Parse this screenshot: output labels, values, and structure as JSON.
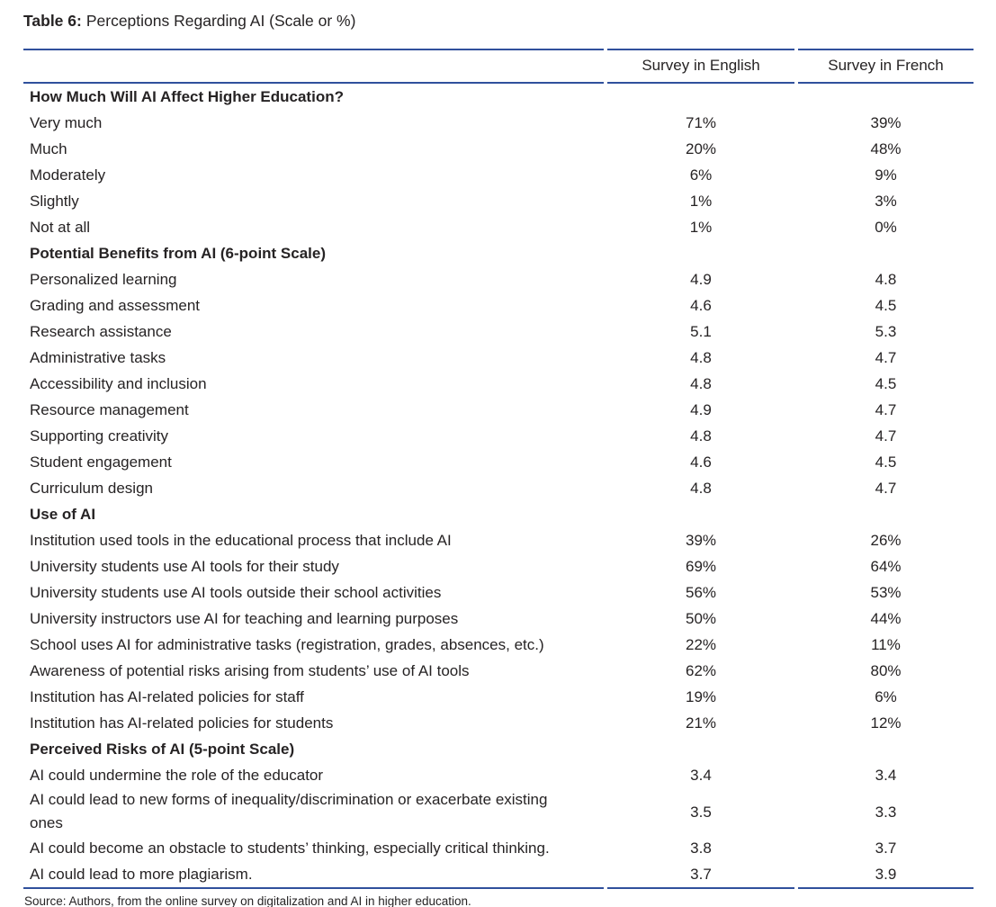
{
  "title": {
    "label": "Table 6:",
    "text": "Perceptions Regarding AI (Scale or %)"
  },
  "table": {
    "columns": [
      "",
      "Survey in English",
      "Survey in French"
    ],
    "rows": [
      {
        "type": "section",
        "label": "How Much Will AI Affect Higher Education?"
      },
      {
        "type": "data",
        "label": "Very much",
        "english": "71%",
        "french": "39%"
      },
      {
        "type": "data",
        "label": "Much",
        "english": "20%",
        "french": "48%"
      },
      {
        "type": "data",
        "label": "Moderately",
        "english": "6%",
        "french": "9%"
      },
      {
        "type": "data",
        "label": "Slightly",
        "english": "1%",
        "french": "3%"
      },
      {
        "type": "data",
        "label": "Not at all",
        "english": "1%",
        "french": "0%"
      },
      {
        "type": "section",
        "label": "Potential Benefits from AI (6-point Scale)"
      },
      {
        "type": "data",
        "label": "Personalized learning",
        "english": "4.9",
        "french": "4.8"
      },
      {
        "type": "data",
        "label": "Grading and assessment",
        "english": "4.6",
        "french": "4.5"
      },
      {
        "type": "data",
        "label": "Research assistance",
        "english": "5.1",
        "french": "5.3"
      },
      {
        "type": "data",
        "label": "Administrative tasks",
        "english": "4.8",
        "french": "4.7"
      },
      {
        "type": "data",
        "label": "Accessibility and inclusion",
        "english": "4.8",
        "french": "4.5"
      },
      {
        "type": "data",
        "label": "Resource management",
        "english": "4.9",
        "french": "4.7"
      },
      {
        "type": "data",
        "label": "Supporting creativity",
        "english": "4.8",
        "french": "4.7"
      },
      {
        "type": "data",
        "label": "Student engagement",
        "english": "4.6",
        "french": "4.5"
      },
      {
        "type": "data",
        "label": "Curriculum design",
        "english": "4.8",
        "french": "4.7"
      },
      {
        "type": "section",
        "label": "Use of AI"
      },
      {
        "type": "data",
        "label": "Institution used tools in the educational process that include AI",
        "english": "39%",
        "french": "26%"
      },
      {
        "type": "data",
        "label": "University students use AI tools for their study",
        "english": "69%",
        "french": "64%"
      },
      {
        "type": "data",
        "label": "University students use AI tools outside their school activities",
        "english": "56%",
        "french": "53%"
      },
      {
        "type": "data",
        "label": "University instructors use AI for teaching and learning purposes",
        "english": "50%",
        "french": "44%"
      },
      {
        "type": "data",
        "label": "School uses AI for administrative tasks (registration, grades, absences, etc.)",
        "english": "22%",
        "french": "11%"
      },
      {
        "type": "data",
        "label": "Awareness of potential risks arising from students’ use of AI tools",
        "english": "62%",
        "french": "80%"
      },
      {
        "type": "data",
        "label": "Institution has AI-related policies for staff",
        "english": "19%",
        "french": "6%"
      },
      {
        "type": "data",
        "label": "Institution has AI-related policies for students",
        "english": "21%",
        "french": "12%"
      },
      {
        "type": "section",
        "label": "Perceived Risks of AI (5-point Scale)"
      },
      {
        "type": "data",
        "label": "AI could undermine the role of the educator",
        "english": "3.4",
        "french": "3.4"
      },
      {
        "type": "data",
        "label": "AI could lead to new forms of inequality/discrimination or exacerbate existing ones",
        "english": "3.5",
        "french": "3.3"
      },
      {
        "type": "data",
        "label": "AI could become an obstacle to students’ thinking, especially critical thinking.",
        "english": "3.8",
        "french": "3.7"
      },
      {
        "type": "data",
        "label": "AI could lead to more plagiarism.",
        "english": "3.7",
        "french": "3.9"
      }
    ]
  },
  "source": "Source: Authors, from the online survey on digitalization and AI in higher education.",
  "colors": {
    "rule_blue": "#30509c",
    "text": "#262324"
  }
}
